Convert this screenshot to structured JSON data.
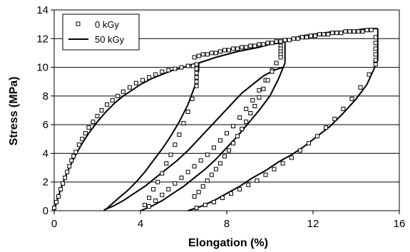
{
  "chart_data": {
    "type": "scatter",
    "title": "",
    "xlabel": "Elongation (%)",
    "ylabel": "Stress (MPa)",
    "xlim": [
      0,
      16
    ],
    "ylim": [
      0,
      14
    ],
    "xticks": [
      0,
      4,
      8,
      12,
      16
    ],
    "yticks": [
      0,
      2,
      4,
      6,
      8,
      10,
      12,
      14
    ],
    "grid": "horizontal",
    "legend_position": "top-left",
    "series": [
      {
        "name": "0 kGy",
        "style": "markers",
        "marker": "open-square",
        "color": "#000000",
        "x": [
          0.0,
          0.1,
          0.2,
          0.3,
          0.4,
          0.5,
          0.6,
          0.7,
          0.8,
          0.9,
          1.0,
          1.15,
          1.3,
          1.45,
          1.6,
          1.8,
          2.0,
          2.2,
          2.45,
          2.7,
          2.95,
          3.2,
          3.5,
          3.8,
          4.1,
          4.4,
          4.7,
          5.0,
          5.3,
          5.6,
          5.9,
          6.2,
          6.45,
          6.6,
          6.6,
          6.6,
          6.6,
          6.6,
          6.6,
          6.4,
          6.2,
          6.0,
          5.8,
          5.6,
          5.4,
          5.2,
          5.0,
          4.8,
          4.6,
          4.4,
          4.2,
          4.4,
          4.7,
          5.0,
          5.3,
          5.6,
          5.9,
          6.2,
          6.5,
          6.8,
          7.1,
          7.4,
          7.7,
          8.0,
          8.3,
          8.6,
          8.9,
          9.2,
          9.5,
          9.8,
          10.1,
          10.3,
          10.5,
          10.5,
          10.5,
          10.5,
          10.5,
          10.3,
          10.1,
          9.9,
          9.7,
          9.5,
          9.3,
          9.1,
          8.9,
          8.7,
          8.5,
          8.3,
          8.1,
          7.9,
          7.7,
          7.5,
          7.3,
          7.1,
          6.9,
          6.7,
          6.5,
          6.6,
          7.0,
          7.4,
          7.8,
          8.2,
          8.6,
          9.0,
          9.4,
          9.8,
          10.2,
          10.6,
          11.0,
          11.4,
          11.8,
          12.2,
          12.6,
          13.0,
          13.4,
          13.8,
          14.2,
          14.6,
          14.9,
          14.9,
          14.9,
          14.9,
          14.9,
          14.9,
          14.7,
          14.5,
          14.3,
          14.1,
          13.9,
          13.7,
          13.5,
          13.3,
          13.1,
          12.9,
          12.7,
          12.5,
          12.3,
          12.1,
          11.9,
          11.7,
          11.5,
          11.3,
          11.1,
          10.9,
          10.7,
          10.5,
          10.3,
          10.1,
          9.9,
          9.7,
          9.5,
          9.3,
          9.1,
          8.9,
          8.7,
          8.5,
          8.3,
          8.1,
          7.9,
          7.7,
          7.5,
          7.3,
          7.1,
          6.9,
          6.7,
          6.5
        ],
        "y": [
          0.2,
          0.6,
          1.0,
          1.5,
          1.9,
          2.3,
          2.7,
          3.1,
          3.5,
          3.8,
          4.1,
          4.6,
          5.0,
          5.4,
          5.8,
          6.2,
          6.6,
          7.0,
          7.4,
          7.7,
          8.0,
          8.3,
          8.6,
          8.9,
          9.1,
          9.3,
          9.5,
          9.7,
          9.8,
          9.9,
          10.0,
          10.1,
          10.1,
          10.2,
          9.9,
          9.6,
          9.3,
          9.0,
          8.7,
          7.8,
          6.9,
          6.1,
          5.3,
          4.6,
          3.9,
          3.3,
          2.6,
          2.0,
          1.5,
          0.9,
          0.4,
          0.3,
          0.7,
          1.1,
          1.5,
          1.9,
          2.3,
          2.7,
          3.1,
          3.5,
          3.9,
          4.4,
          4.9,
          5.4,
          5.9,
          6.5,
          7.1,
          7.7,
          8.4,
          9.1,
          9.8,
          10.3,
          11.5,
          11.3,
          11.1,
          10.9,
          10.7,
          10.3,
          9.7,
          9.1,
          8.5,
          7.9,
          7.3,
          6.8,
          6.2,
          5.7,
          5.2,
          4.7,
          4.2,
          3.8,
          3.3,
          2.9,
          2.5,
          2.1,
          1.7,
          1.3,
          1.0,
          0.2,
          0.4,
          0.6,
          0.9,
          1.2,
          1.5,
          1.8,
          2.1,
          2.5,
          2.9,
          3.3,
          3.7,
          4.2,
          4.7,
          5.2,
          5.8,
          6.4,
          7.1,
          7.8,
          8.6,
          9.5,
          10.2,
          12.1,
          11.7,
          11.3,
          10.9,
          10.5,
          12.6,
          12.6,
          12.5,
          12.5,
          12.5,
          12.5,
          12.5,
          12.4,
          12.4,
          12.4,
          12.3,
          12.3,
          12.3,
          12.2,
          12.2,
          12.1,
          12.1,
          12.0,
          12.0,
          11.9,
          11.9,
          11.8,
          11.8,
          11.7,
          11.7,
          11.6,
          11.6,
          11.5,
          11.5,
          11.4,
          11.4,
          11.3,
          11.3,
          11.2,
          11.2,
          11.1,
          11.0,
          11.0,
          10.9,
          10.9,
          10.8,
          10.7
        ]
      },
      {
        "name": "50 kGy",
        "style": "line",
        "color": "#000000",
        "segments": [
          {
            "x": [
              0,
              0.15,
              0.3,
              0.5,
              0.7,
              1.0,
              1.3,
              1.6,
              2.0,
              2.4,
              2.8,
              3.2,
              3.6,
              4.0,
              4.5,
              5.0,
              5.5,
              6.0,
              6.4,
              6.7
            ],
            "y": [
              0,
              0.8,
              1.5,
              2.3,
              3.0,
              3.9,
              4.7,
              5.4,
              6.2,
              6.9,
              7.5,
              8.0,
              8.4,
              8.8,
              9.2,
              9.5,
              9.8,
              10.0,
              10.2,
              10.3
            ]
          },
          {
            "x": [
              6.7,
              6.7
            ],
            "y": [
              10.3,
              9.8
            ]
          },
          {
            "x": [
              6.7,
              6.5,
              6.2,
              5.8,
              5.4,
              5.0,
              4.6,
              4.2,
              3.8,
              3.4,
              3.0,
              2.7,
              2.4,
              2.3
            ],
            "y": [
              9.8,
              8.6,
              7.4,
              6.2,
              5.2,
              4.3,
              3.5,
              2.7,
              2.0,
              1.4,
              0.9,
              0.5,
              0.1,
              0.05
            ]
          },
          {
            "x": [
              2.3,
              2.7,
              3.2,
              3.7,
              4.2,
              4.7,
              5.2,
              5.7,
              6.2,
              6.7,
              7.2,
              7.7,
              8.2,
              8.7,
              9.2,
              9.7,
              10.2,
              10.6
            ],
            "y": [
              0.05,
              0.3,
              0.7,
              1.2,
              1.7,
              2.3,
              2.9,
              3.5,
              4.2,
              5.0,
              5.8,
              6.6,
              7.4,
              8.2,
              8.8,
              9.4,
              9.8,
              10.0
            ]
          },
          {
            "x": [
              4.0,
              4.5,
              5.0,
              5.5,
              6.0,
              6.5,
              7.0,
              7.5,
              8.0,
              8.5,
              9.0,
              9.5,
              10.0,
              10.4,
              10.7
            ],
            "y": [
              0.0,
              0.3,
              0.7,
              1.2,
              1.7,
              2.3,
              2.9,
              3.6,
              4.4,
              5.2,
              6.1,
              7.0,
              8.0,
              9.2,
              10.3
            ]
          },
          {
            "x": [
              6.7,
              7.5,
              8.5,
              9.5,
              10.0,
              10.5,
              10.7
            ],
            "y": [
              10.3,
              10.7,
              11.1,
              11.4,
              11.6,
              11.7,
              11.8
            ]
          },
          {
            "x": [
              10.7,
              10.7
            ],
            "y": [
              11.8,
              10.3
            ]
          },
          {
            "x": [
              10.7,
              11.0,
              11.5,
              12.0,
              12.5,
              13.0,
              13.5,
              14.0,
              14.5,
              14.8,
              15.0
            ],
            "y": [
              11.9,
              12.0,
              12.2,
              12.3,
              12.4,
              12.5,
              12.5,
              12.6,
              12.7,
              12.7,
              12.7
            ]
          },
          {
            "x": [
              15.0,
              15.0
            ],
            "y": [
              12.7,
              10.5
            ]
          },
          {
            "x": [
              6.2,
              6.8,
              7.4,
              8.0,
              8.6,
              9.2,
              9.8,
              10.4,
              11.0,
              11.6,
              12.2,
              12.8,
              13.4,
              14.0,
              14.5,
              14.8,
              15.0
            ],
            "y": [
              0.0,
              0.3,
              0.7,
              1.2,
              1.7,
              2.3,
              2.8,
              3.4,
              3.9,
              4.5,
              5.2,
              5.9,
              6.8,
              7.8,
              8.8,
              9.8,
              10.5
            ]
          }
        ]
      }
    ]
  }
}
